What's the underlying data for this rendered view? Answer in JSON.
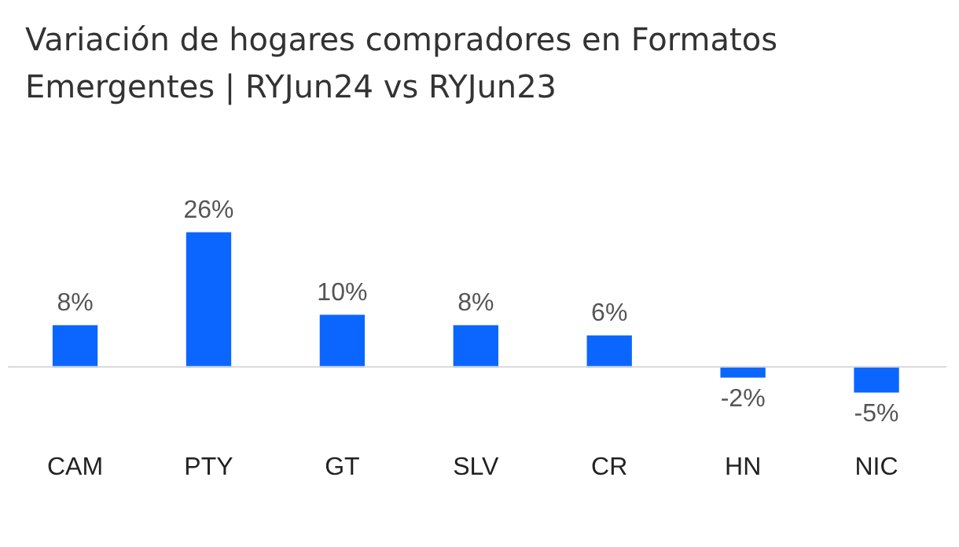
{
  "chart_data": {
    "type": "bar",
    "title": "Variación de hogares compradores en Formatos Emergentes | RYJun24 vs RYJun23",
    "categories": [
      "CAM",
      "PTY",
      "GT",
      "SLV",
      "CR",
      "HN",
      "NIC"
    ],
    "values": [
      8,
      26,
      10,
      8,
      6,
      -2,
      -5
    ],
    "value_labels": [
      "8%",
      "26%",
      "10%",
      "8%",
      "6%",
      "-2%",
      "-5%"
    ],
    "color": "#0a66ff"
  }
}
